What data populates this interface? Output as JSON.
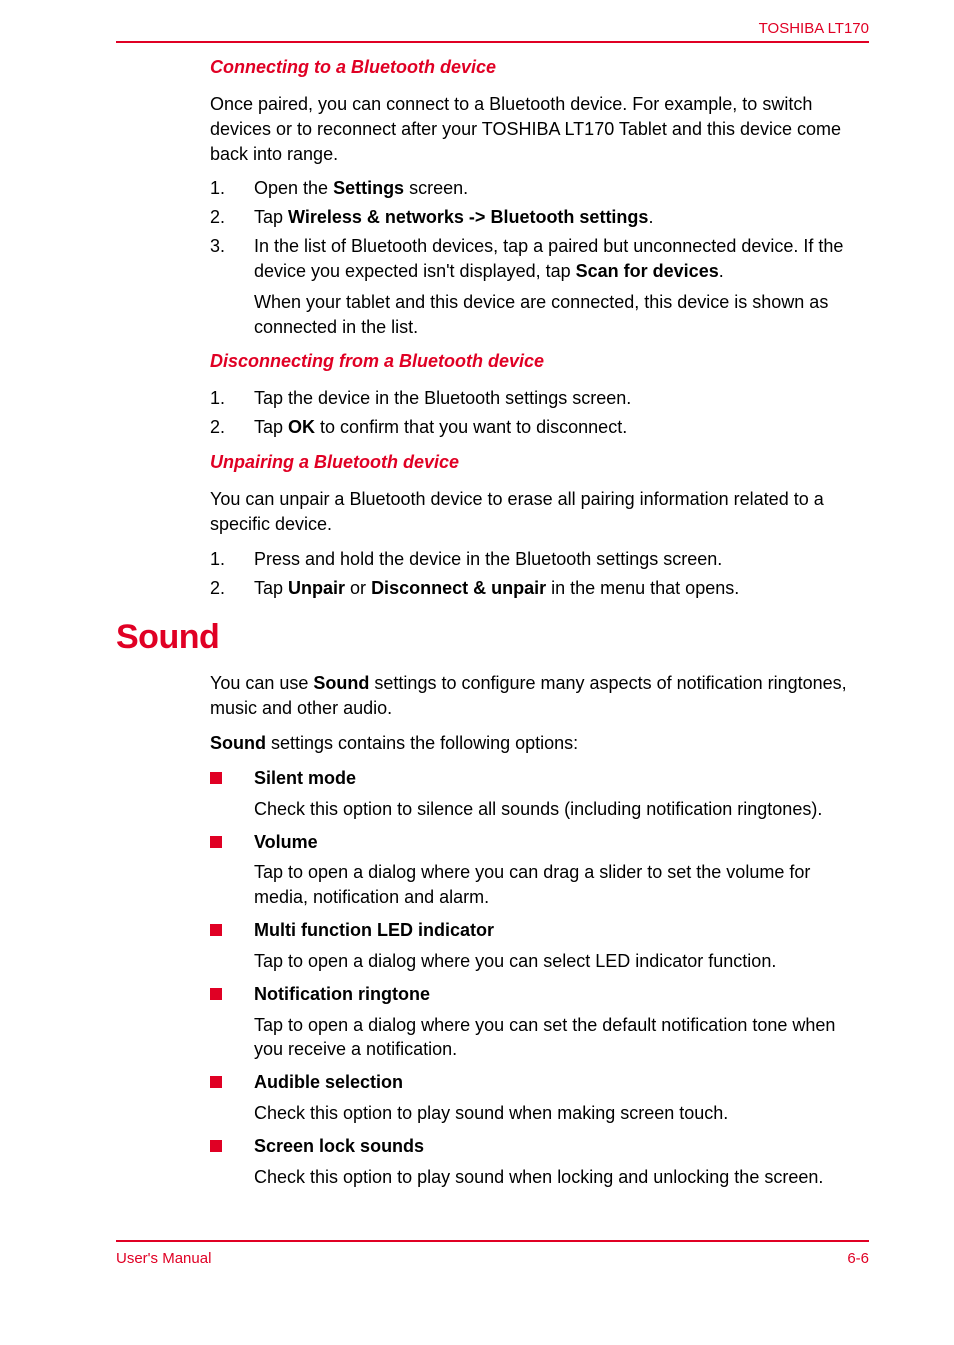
{
  "header": {
    "brand": "TOSHIBA LT170"
  },
  "sections": {
    "connecting": {
      "heading": "Connecting to a Bluetooth device",
      "intro": "Once paired, you can connect to a Bluetooth device. For example, to switch devices or to reconnect after your TOSHIBA LT170 Tablet and this device come back into range.",
      "steps": {
        "s1_a": "Open the ",
        "s1_b": "Settings",
        "s1_c": " screen.",
        "s2_a": "Tap ",
        "s2_b": "Wireless & networks -> Bluetooth settings",
        "s2_c": ".",
        "s3_a": "In the list of Bluetooth devices, tap a paired but unconnected device. If the device you expected isn't displayed, tap ",
        "s3_b": "Scan for devices",
        "s3_c": ".",
        "s3_sub": "When your tablet and this device are connected, this device is shown as connected in the list."
      }
    },
    "disconnecting": {
      "heading": "Disconnecting from a Bluetooth device",
      "steps": {
        "s1": "Tap the device in the Bluetooth settings screen.",
        "s2_a": "Tap ",
        "s2_b": "OK",
        "s2_c": " to confirm that you want to disconnect."
      }
    },
    "unpairing": {
      "heading": "Unpairing a Bluetooth device",
      "intro": "You can unpair a Bluetooth device to erase all pairing information related to a specific device.",
      "steps": {
        "s1": "Press and hold the device in the Bluetooth settings screen.",
        "s2_a": "Tap ",
        "s2_b": "Unpair",
        "s2_c": " or ",
        "s2_d": "Disconnect & unpair",
        "s2_e": " in the menu that opens."
      }
    },
    "sound": {
      "heading": "Sound",
      "intro_a": "You can use ",
      "intro_b": "Sound",
      "intro_c": " settings to configure many aspects of notification ringtones, music and other audio.",
      "intro2_a": "Sound",
      "intro2_b": " settings contains the following options:",
      "items": {
        "silent": {
          "title": "Silent mode",
          "body": "Check this option to silence all sounds (including notification ringtones)."
        },
        "volume": {
          "title": "Volume",
          "body": "Tap to open a dialog where you can drag a slider to set the volume for media, notification and alarm."
        },
        "led": {
          "title": "Multi function LED indicator",
          "body": "Tap to open a dialog where you can select LED indicator function."
        },
        "ringtone": {
          "title": "Notification ringtone",
          "body": "Tap to open a dialog where you can set the default notification tone when you receive a notification."
        },
        "audible": {
          "title": "Audible selection",
          "body": "Check this option to play sound when making screen touch."
        },
        "lock": {
          "title": "Screen lock sounds",
          "body": "Check this option to play sound when locking and unlocking the screen."
        }
      }
    }
  },
  "footer": {
    "left": "User's Manual",
    "right": "6-6"
  },
  "colors": {
    "accent": "#e00024",
    "text": "#000000",
    "bg": "#ffffff"
  }
}
